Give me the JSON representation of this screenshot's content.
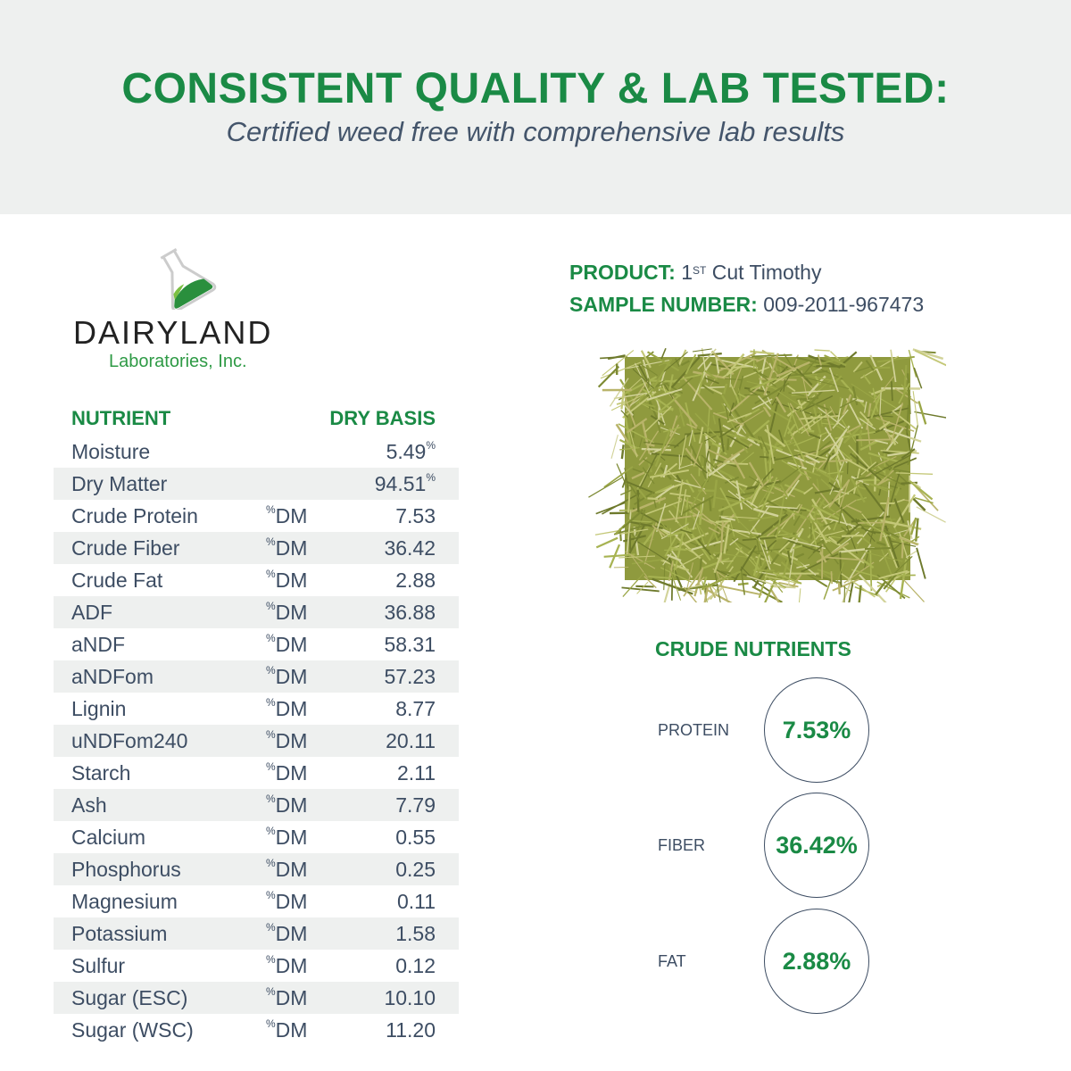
{
  "header": {
    "title": "CONSISTENT QUALITY & LAB TESTED:",
    "subtitle": "Certified weed free with comprehensive lab results"
  },
  "logo": {
    "name": "DAIRYLAND",
    "sub": "Laboratories, Inc."
  },
  "table": {
    "headers": [
      "NUTRIENT",
      "DRY BASIS"
    ],
    "rows": [
      {
        "name": "Moisture",
        "unit": "",
        "value": "5.49",
        "suffix": "%"
      },
      {
        "name": "Dry Matter",
        "unit": "",
        "value": "94.51",
        "suffix": "%"
      },
      {
        "name": "Crude Protein",
        "unit": "DM",
        "value": "7.53"
      },
      {
        "name": "Crude Fiber",
        "unit": "DM",
        "value": "36.42"
      },
      {
        "name": "Crude Fat",
        "unit": "DM",
        "value": "2.88"
      },
      {
        "name": "ADF",
        "unit": "DM",
        "value": "36.88"
      },
      {
        "name": "aNDF",
        "unit": "DM",
        "value": "58.31"
      },
      {
        "name": "aNDFom",
        "unit": "DM",
        "value": "57.23"
      },
      {
        "name": "Lignin",
        "unit": "DM",
        "value": "8.77"
      },
      {
        "name": "uNDFom240",
        "unit": "DM",
        "value": "20.11"
      },
      {
        "name": "Starch",
        "unit": "DM",
        "value": "2.11"
      },
      {
        "name": "Ash",
        "unit": "DM",
        "value": "7.79"
      },
      {
        "name": "Calcium",
        "unit": "DM",
        "value": "0.55"
      },
      {
        "name": "Phosphorus",
        "unit": "DM",
        "value": "0.25"
      },
      {
        "name": "Magnesium",
        "unit": "DM",
        "value": "0.11"
      },
      {
        "name": "Potassium",
        "unit": "DM",
        "value": "1.58"
      },
      {
        "name": "Sulfur",
        "unit": "DM",
        "value": "0.12"
      },
      {
        "name": "Sugar (ESC)",
        "unit": "DM",
        "value": "10.10"
      },
      {
        "name": "Sugar (WSC)",
        "unit": "DM",
        "value": "11.20"
      }
    ]
  },
  "product": {
    "label": "PRODUCT:",
    "value_num": "1",
    "value_sup": "ST",
    "value_rest": " Cut Timothy",
    "sample_label": "SAMPLE NUMBER:",
    "sample_value": "009-2011-967473"
  },
  "crude": {
    "title": "CRUDE NUTRIENTS",
    "items": [
      {
        "label": "PROTEIN",
        "value": "7.53%"
      },
      {
        "label": "FIBER",
        "value": "36.42%"
      },
      {
        "label": "FAT",
        "value": "2.88%"
      }
    ]
  },
  "colors": {
    "green": "#1a8a45",
    "text": "#3d4d63",
    "band": "#eef0ef"
  }
}
